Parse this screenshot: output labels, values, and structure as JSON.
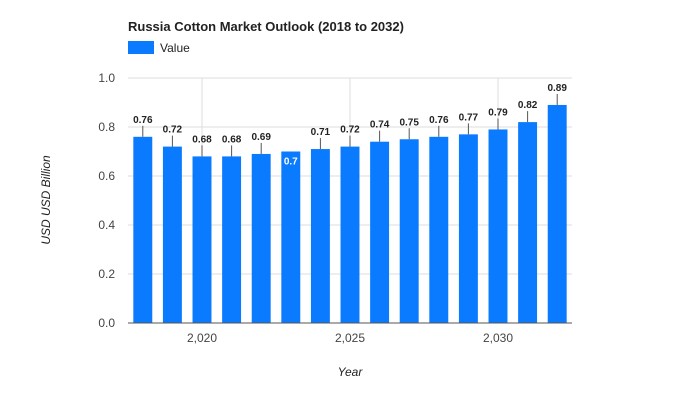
{
  "chart_data": {
    "type": "bar",
    "title": "Russia Cotton Market Outlook (2018 to 2032)",
    "xlabel": "Year",
    "ylabel": "USD USD Billion",
    "x": [
      2018,
      2019,
      2020,
      2021,
      2022,
      2023,
      2024,
      2025,
      2026,
      2027,
      2028,
      2029,
      2030,
      2031,
      2032
    ],
    "series": [
      {
        "name": "Value",
        "values": [
          0.76,
          0.72,
          0.68,
          0.68,
          0.69,
          0.7,
          0.71,
          0.72,
          0.74,
          0.75,
          0.76,
          0.77,
          0.79,
          0.82,
          0.89
        ],
        "labels": [
          "0.76",
          "0.72",
          "0.68",
          "0.68",
          "0.69",
          "0.7",
          "0.71",
          "0.72",
          "0.74",
          "0.75",
          "0.76",
          "0.77",
          "0.79",
          "0.82",
          "0.89"
        ]
      }
    ],
    "ylim": [
      0,
      1.0
    ],
    "yticks": [
      {
        "value": 0,
        "label": "0.0"
      },
      {
        "value": 0.2,
        "label": "0.2"
      },
      {
        "value": 0.4,
        "label": "0.4"
      },
      {
        "value": 0.6,
        "label": "0.6"
      },
      {
        "value": 0.8,
        "label": "0.8"
      },
      {
        "value": 1.0,
        "label": "1.0"
      }
    ],
    "xticks": [
      {
        "value": 2020,
        "label": "2,020"
      },
      {
        "value": 2025,
        "label": "2,025"
      },
      {
        "value": 2030,
        "label": "2,030"
      }
    ],
    "inside_label_index": 5,
    "grid": true,
    "legend": "top-left",
    "colors": {
      "bar": "#0a7bff",
      "grid": "#dddddd",
      "axis": "#555555",
      "label_dark": "#222222",
      "label_inside": "#ffffff"
    }
  }
}
